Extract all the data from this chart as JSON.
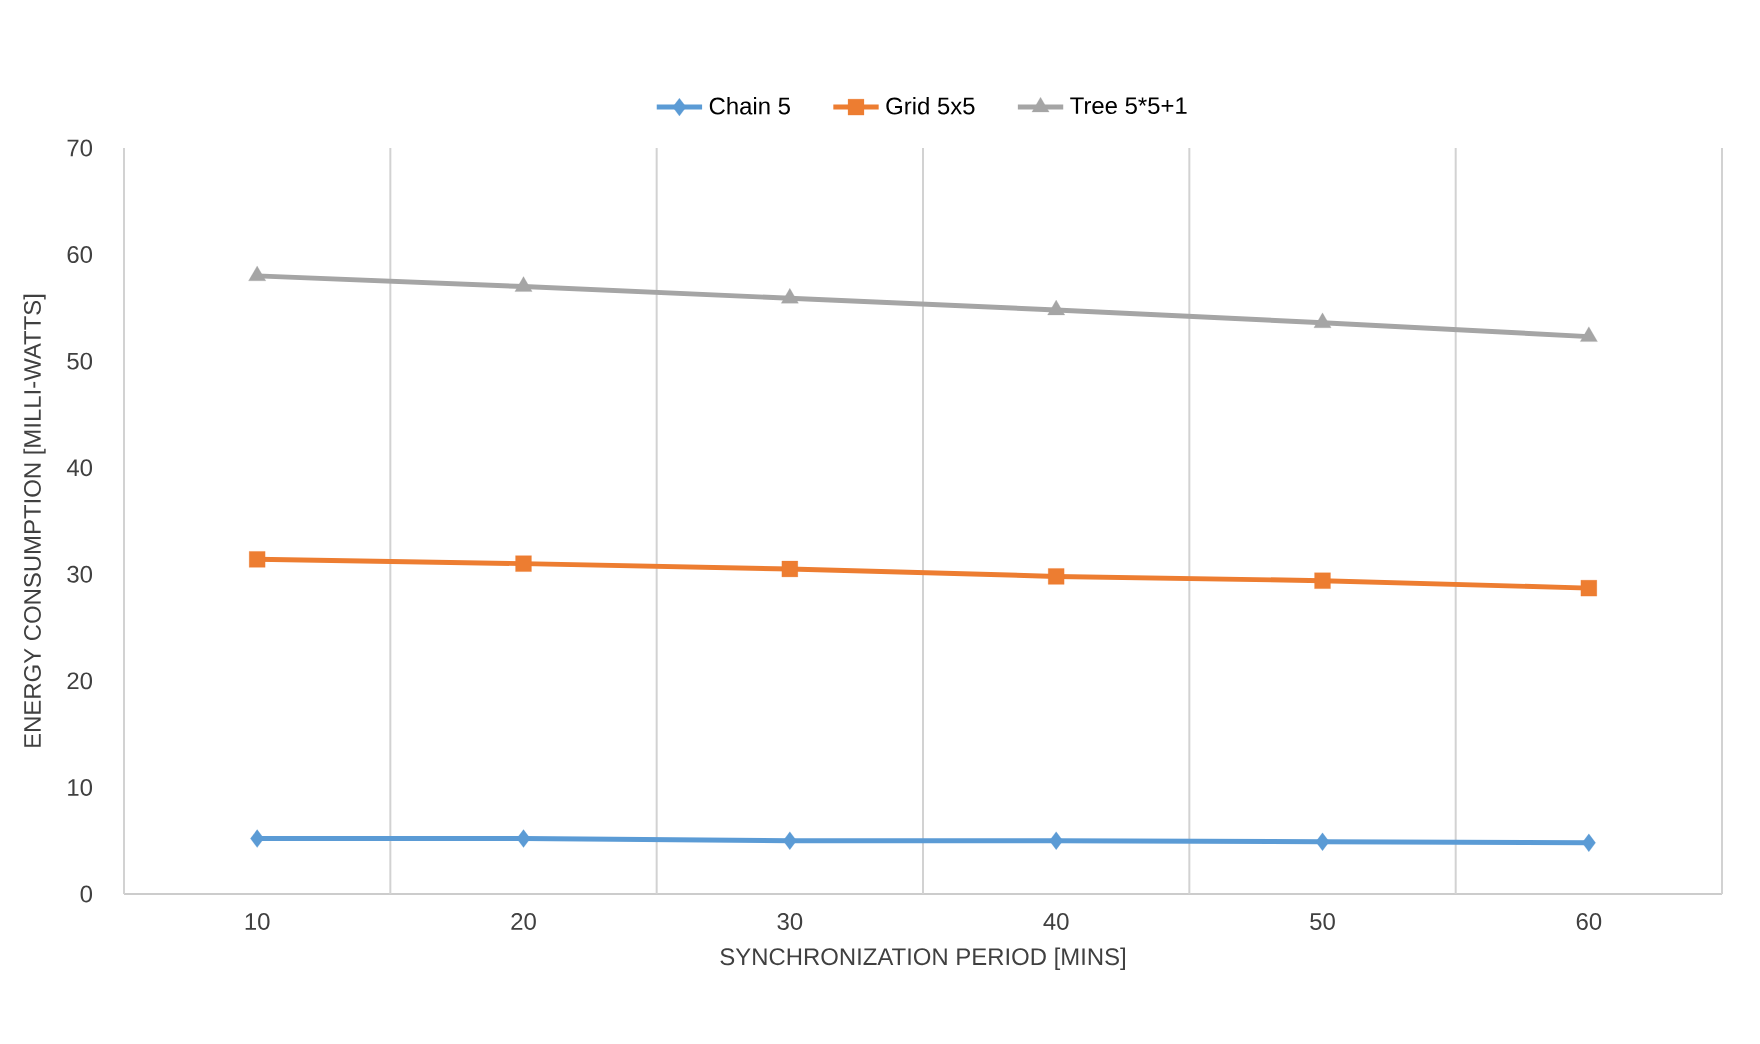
{
  "chart_data": {
    "type": "line",
    "xlabel": "SYNCHRONIZATION PERIOD [MINS]",
    "ylabel": "ENERGY CONSUMPTION [MILLI-WATTS]",
    "categories": [
      "10",
      "20",
      "30",
      "40",
      "50",
      "60"
    ],
    "series": [
      {
        "name": "Chain 5",
        "color": "#5b9bd5",
        "marker": "diamond",
        "values": [
          5.2,
          5.2,
          5.0,
          5.0,
          4.9,
          4.8
        ]
      },
      {
        "name": "Grid 5x5",
        "color": "#ed7d31",
        "marker": "square",
        "values": [
          31.4,
          31.0,
          30.5,
          29.8,
          29.4,
          28.7
        ]
      },
      {
        "name": "Tree 5*5+1",
        "color": "#a5a5a5",
        "marker": "triangle",
        "values": [
          58.0,
          57.0,
          55.9,
          54.8,
          53.6,
          52.3
        ]
      }
    ],
    "ylim": [
      0,
      70
    ],
    "yticks": [
      0,
      10,
      20,
      30,
      40,
      50,
      60,
      70
    ],
    "grid": "x",
    "legend": "top"
  }
}
